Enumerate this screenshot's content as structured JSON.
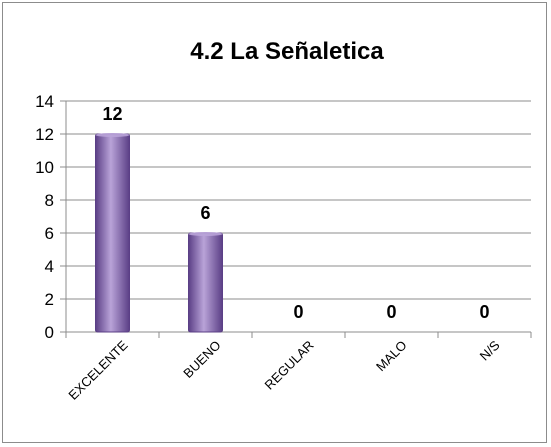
{
  "chart_data": {
    "type": "bar",
    "title": "4.2 La Señaletica",
    "categories": [
      "EXCELENTE",
      "BUENO",
      "REGULAR",
      "MALO",
      "N/S"
    ],
    "values": [
      12,
      6,
      0,
      0,
      0
    ],
    "data_labels": [
      "12",
      "6",
      "0",
      "0",
      "0"
    ],
    "yticks": [
      "0",
      "2",
      "4",
      "6",
      "8",
      "10",
      "12",
      "14"
    ],
    "ylim": [
      0,
      14
    ],
    "xlabel": "",
    "ylabel": "",
    "grid": true,
    "legend": "none",
    "bar_color": "#8a6bb4",
    "bar_color_dark": "#5b3f86",
    "bar_color_light": "#b9a3d8"
  }
}
